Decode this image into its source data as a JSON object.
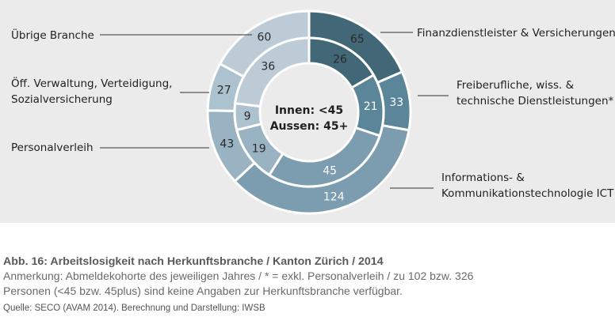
{
  "chart_data": {
    "type": "pie",
    "subtype": "double-donut",
    "center_text": [
      "Innen: <45",
      "Aussen: 45+"
    ],
    "categories": [
      {
        "label_lines": [
          "Finanzdienstleister & Versicherungen"
        ],
        "color": "#426878"
      },
      {
        "label_lines": [
          "Freiberufliche, wiss. &",
          "technische Dienstleistungen*"
        ],
        "color": "#5b8599"
      },
      {
        "label_lines": [
          "Informations- &",
          "Kommunikationstechnologie ICT"
        ],
        "color": "#7c9db0"
      },
      {
        "label_lines": [
          "Personalverleih"
        ],
        "color": "#9ab3c3"
      },
      {
        "label_lines": [
          "Öff. Verwaltung, Verteidigung,",
          "Sozialversicherung"
        ],
        "color": "#adc2cf"
      },
      {
        "label_lines": [
          "Übrige Branche"
        ],
        "color": "#bccbd5"
      }
    ],
    "series": [
      {
        "name": "Innen: <45",
        "values": [
          26,
          21,
          45,
          19,
          9,
          36
        ]
      },
      {
        "name": "Aussen: 45+",
        "values": [
          65,
          33,
          124,
          43,
          27,
          60
        ]
      }
    ],
    "xlabel": "",
    "ylabel": ""
  },
  "caption": {
    "title": "Abb. 16: Arbeitslosigkeit nach Herkunftsbranche / Kanton Zürich / 2014",
    "note_line1": "Anmerkung: Abmeldekohorte des jeweiligen Jahres / * = exkl. Personalverleih / zu 102 bzw. 326",
    "note_line2": "Personen (<45 bzw. 45plus) sind keine Angaben zur Herkunftsbranche verfügbar.",
    "source": "Quelle: SECO (AVAM 2014). Berechnung und Darstellung: IWSB"
  }
}
